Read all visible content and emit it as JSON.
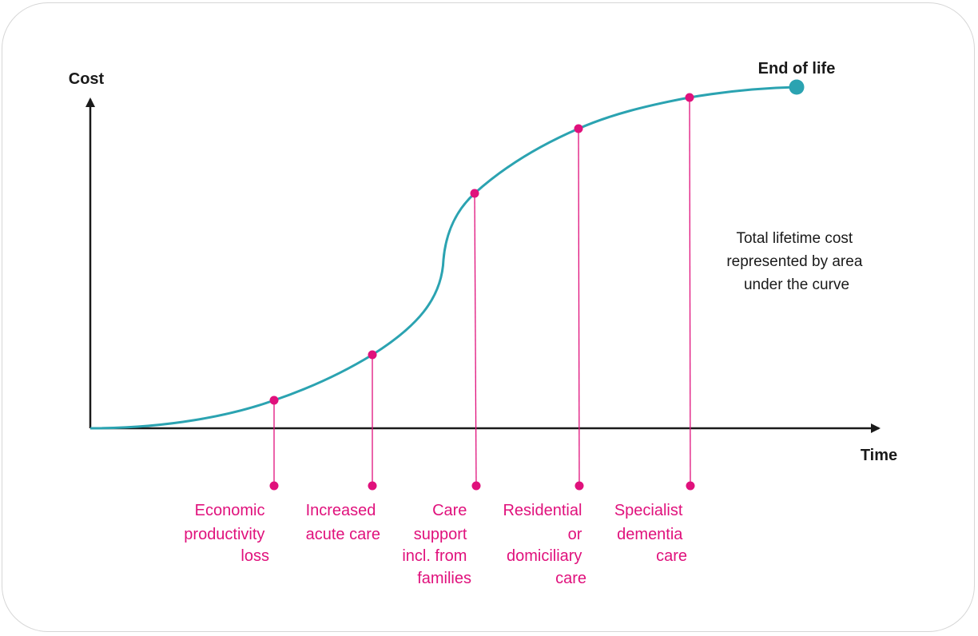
{
  "axes": {
    "y_label": "Cost",
    "x_label": "Time"
  },
  "end_marker": {
    "label": "End of life"
  },
  "note": {
    "lines": [
      "Total lifetime cost",
      "represented by area",
      "under the curve"
    ]
  },
  "stages": [
    {
      "lines": [
        "Economic",
        "productivity",
        "loss"
      ]
    },
    {
      "lines": [
        "Increased",
        "acute care"
      ]
    },
    {
      "lines": [
        "Care",
        "support",
        "incl. from",
        "families"
      ]
    },
    {
      "lines": [
        "Residential",
        "or",
        "domiciliary",
        "care"
      ]
    },
    {
      "lines": [
        "Specialist",
        "dementia",
        "care"
      ]
    }
  ],
  "colors": {
    "curve": "#2ba3b1",
    "stage": "#e0117c",
    "axis": "#1a1a1a",
    "card_border": "#d6d6d6"
  }
}
